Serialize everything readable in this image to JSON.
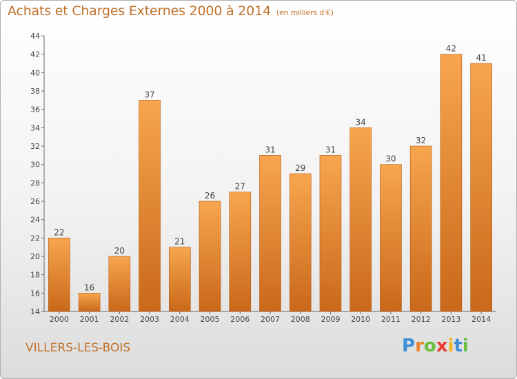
{
  "header": {
    "title": "Achats et Charges Externes 2000 à 2014",
    "subtitle": "(en milliers d'€)"
  },
  "footer": {
    "place": "VILLERS-LES-BOIS",
    "logo_text": "Proxiti"
  },
  "chart_data": {
    "type": "bar",
    "categories": [
      "2000",
      "2001",
      "2002",
      "2003",
      "2004",
      "2005",
      "2006",
      "2007",
      "2008",
      "2009",
      "2010",
      "2011",
      "2012",
      "2013",
      "2014"
    ],
    "values": [
      22,
      16,
      20,
      37,
      21,
      26,
      27,
      31,
      29,
      31,
      34,
      30,
      32,
      42,
      41
    ],
    "ylim": [
      14,
      44
    ],
    "yticks": [
      14,
      16,
      18,
      20,
      22,
      24,
      26,
      28,
      30,
      32,
      34,
      36,
      38,
      40,
      42,
      44
    ],
    "grid": false,
    "colors": {
      "bar_light": "#f7a64e",
      "bar_dark": "#c9681a",
      "text": "#444444",
      "accent": "#c0712b"
    }
  }
}
